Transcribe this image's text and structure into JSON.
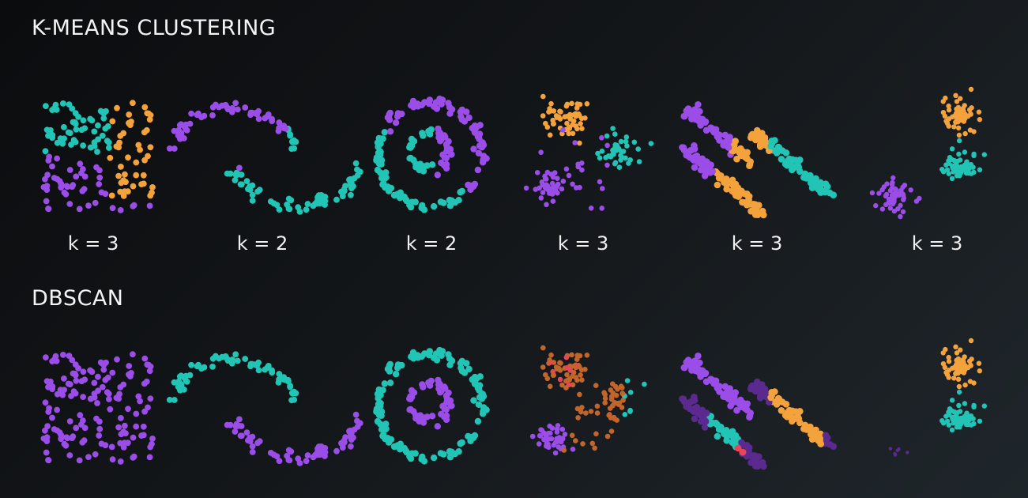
{
  "sections": {
    "kmeans": {
      "title": "K-MEANS CLUSTERING"
    },
    "dbscan": {
      "title": "DBSCAN"
    }
  },
  "k_labels": [
    "k = 3",
    "k = 2",
    "k = 2",
    "k = 3",
    "k = 3",
    "k = 3"
  ],
  "datasets": [
    "uniform-square",
    "two-moons",
    "concentric-circles",
    "varied-blobs",
    "anisotropic-lines",
    "three-blobs"
  ],
  "colors": {
    "purple": "#9b4de8",
    "teal": "#22c4b6",
    "orange": "#f3a23c",
    "brown": "#c2652a",
    "red": "#e8455a",
    "dark_purple": "#5b2a8f",
    "background_start": "#0b0c0e",
    "background_end": "#1f262b"
  }
}
